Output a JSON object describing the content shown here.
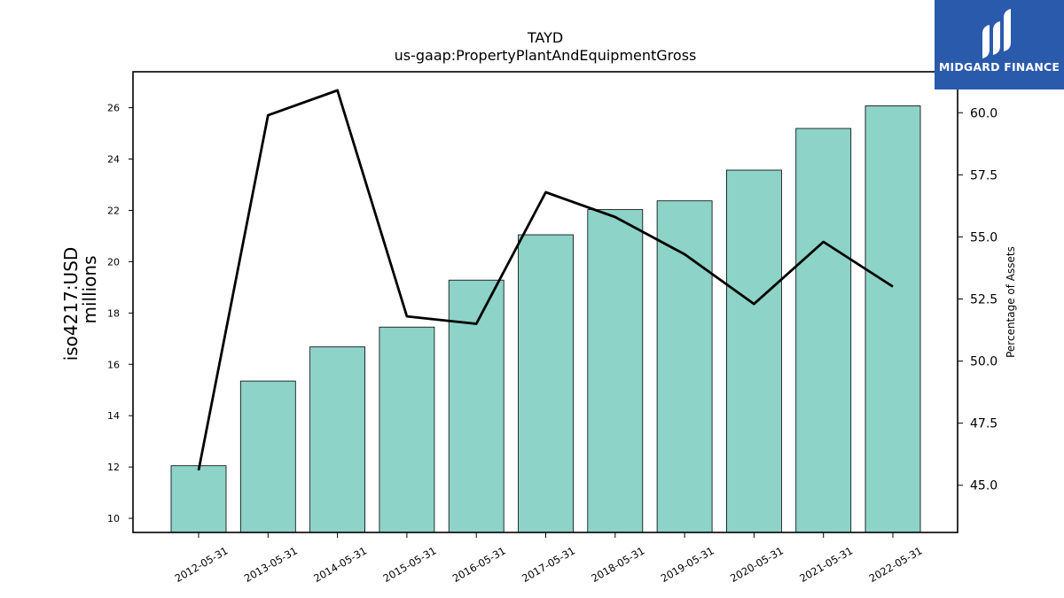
{
  "chart_data": {
    "type": "bar",
    "title": "TAYD",
    "subtitle": "us-gaap:PropertyPlantAndEquipmentGross",
    "categories": [
      "2012-05-31",
      "2013-05-31",
      "2014-05-31",
      "2015-05-31",
      "2016-05-31",
      "2017-05-31",
      "2018-05-31",
      "2019-05-31",
      "2020-05-31",
      "2021-05-31",
      "2022-05-31"
    ],
    "series": [
      {
        "axis": "left",
        "kind": "bar",
        "color": "#8dd3c7",
        "values": [
          12.05,
          15.35,
          16.68,
          17.45,
          19.28,
          21.05,
          22.03,
          22.37,
          23.57,
          25.19,
          26.07
        ]
      },
      {
        "axis": "right",
        "kind": "line",
        "color": "#000000",
        "values": [
          45.6,
          59.9,
          60.9,
          51.8,
          51.5,
          56.8,
          55.8,
          54.3,
          52.3,
          54.8,
          53.0
        ]
      }
    ],
    "ylabel": "iso4217:USD",
    "ylabel2": "millions",
    "y2label": "Percentage of Assets",
    "ylim": [
      9.45,
      27.4
    ],
    "y2lim": [
      43.1,
      61.65
    ],
    "yticks": [
      "10",
      "12",
      "14",
      "16",
      "18",
      "20",
      "22",
      "24",
      "26"
    ],
    "y2ticks": [
      "45.0",
      "47.5",
      "50.0",
      "52.5",
      "55.0",
      "57.5",
      "60.0"
    ],
    "grid": false,
    "legend": "none"
  },
  "logo": {
    "text": "MIDGARD FINANCE",
    "icon": "midgard-logo-icon",
    "background": "#2a5aab"
  }
}
